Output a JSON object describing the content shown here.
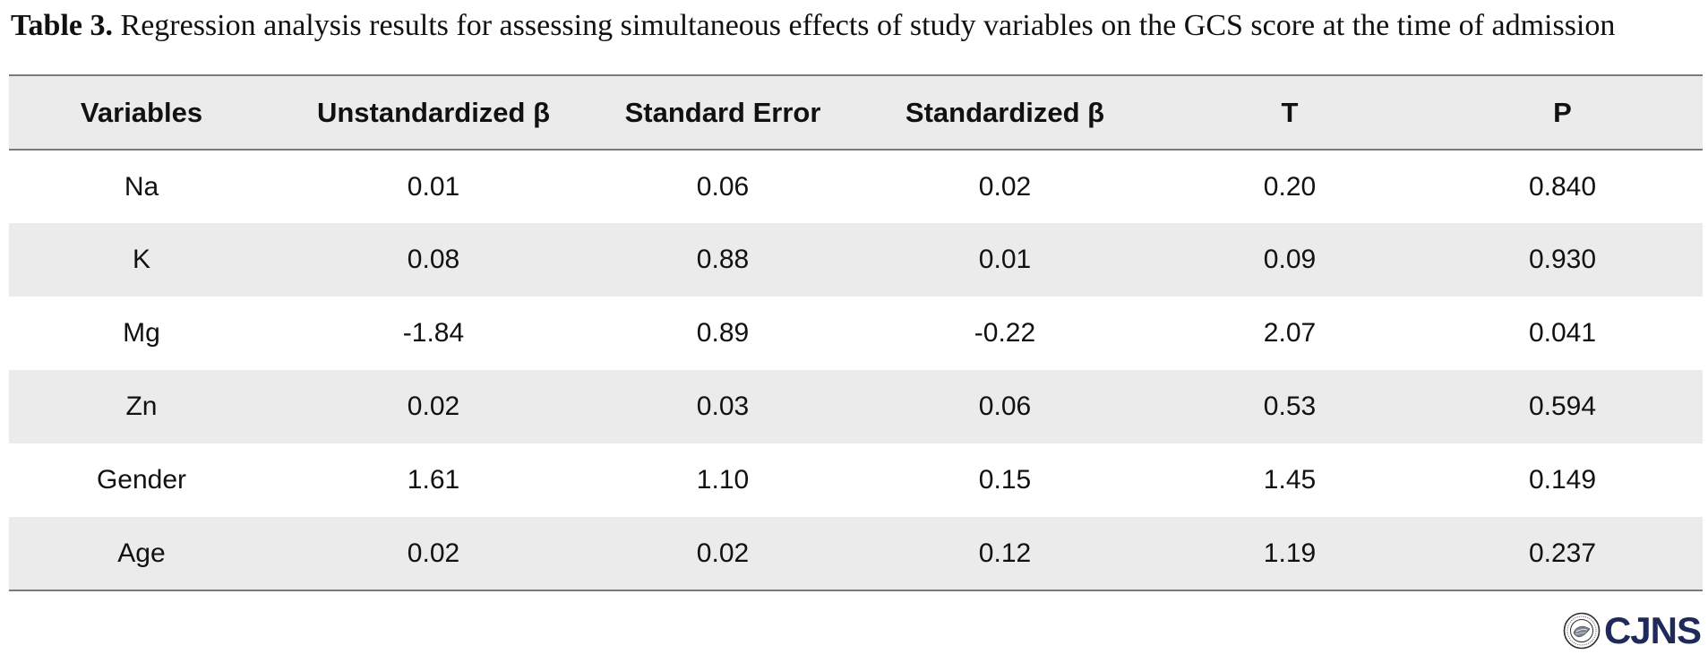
{
  "caption": {
    "label": "Table 3.",
    "text": " Regression analysis results for assessing simultaneous effects of study variables on the GCS score at the time of admission"
  },
  "table": {
    "headers": [
      "Variables",
      "Unstandardized β",
      "Standard Error",
      "Standardized β",
      "T",
      "P"
    ],
    "rows": [
      [
        "Na",
        "0.01",
        "0.06",
        "0.02",
        "0.20",
        "0.840"
      ],
      [
        "K",
        "0.08",
        "0.88",
        "0.01",
        "0.09",
        "0.930"
      ],
      [
        "Mg",
        "-1.84",
        "0.89",
        "-0.22",
        "2.07",
        "0.041"
      ],
      [
        "Zn",
        "0.02",
        "0.03",
        "0.06",
        "0.53",
        "0.594"
      ],
      [
        "Gender",
        "1.61",
        "1.10",
        "0.15",
        "1.45",
        "0.149"
      ],
      [
        "Age",
        "0.02",
        "0.02",
        "0.12",
        "1.19",
        "0.237"
      ]
    ]
  },
  "logo": {
    "text": "CJNS",
    "icon": "journal-seal-icon",
    "color": "#1f2a5a"
  }
}
